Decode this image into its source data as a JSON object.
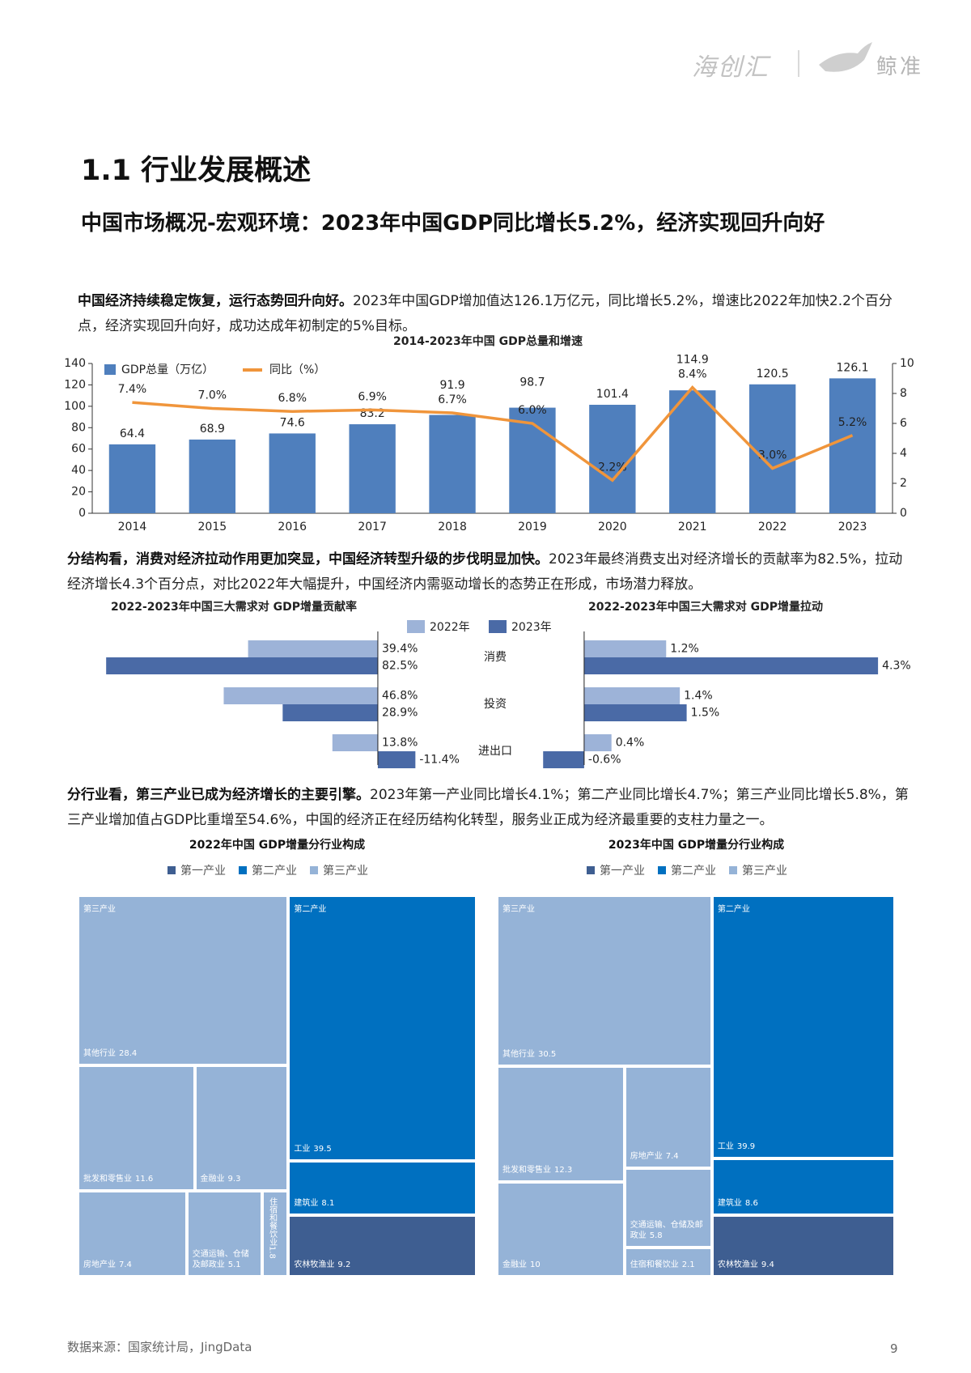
{
  "header": {
    "brand_left": "海创汇",
    "brand_right": "鲸准"
  },
  "section_title": "1.1 行业发展概述",
  "headline": "中国市场概况-宏观环境：2023年中国GDP同比增长5.2%，经济实现回升向好",
  "paragraphs": [
    {
      "lead": "中国经济持续稳定恢复，运行态势回升向好。",
      "text": "2023年中国GDP增加值达126.1万亿元，同比增长5.2%，增速比2022年加快2.2个百分点，经济实现回升向好，成功达成年初制定的5%目标。"
    },
    {
      "lead": "分结构看，消费对经济拉动作用更加突显，中国经济转型升级的步伐明显加快。",
      "text": "2023年最终消费支出对经济增长的贡献率为82.5%，拉动经济增长4.3个百分点，对比2022年大幅提升，中国经济内需驱动增长的态势正在形成，市场潜力释放。"
    },
    {
      "lead": "分行业看，第三产业已成为经济增长的主要引擎。",
      "text": "2023年第一产业同比增长4.1%；第二产业同比增长4.7%；第三产业同比增长5.8%，第三产业增加值占GDP比重增至54.6%，中国的经济正在经历结构化转型，服务业正成为经济最重要的支柱力量之一。"
    }
  ],
  "chart_data": [
    {
      "type": "combo",
      "title": "2014-2023年中国 GDP总量和增速",
      "categories": [
        "2014",
        "2015",
        "2016",
        "2017",
        "2018",
        "2019",
        "2020",
        "2021",
        "2022",
        "2023"
      ],
      "series": [
        {
          "name": "GDP总量（万亿）",
          "type": "bar",
          "color": "#4f7fbd",
          "values": [
            64.4,
            68.9,
            74.6,
            83.2,
            91.9,
            98.7,
            101.4,
            114.9,
            120.5,
            126.1
          ]
        },
        {
          "name": "同比（%）",
          "type": "line",
          "axis": "y2",
          "color": "#f0953b",
          "values": [
            7.4,
            7.0,
            6.8,
            6.9,
            6.7,
            6.0,
            2.2,
            8.4,
            3.0,
            5.2
          ],
          "value_labels": [
            "7.4%",
            "7.0%",
            "6.8%",
            "6.9%",
            "6.7%",
            "6.0%",
            "2.2%",
            "8.4%",
            "3.0%",
            "5.2%"
          ]
        }
      ],
      "ylim": [
        0,
        140
      ],
      "yticks": [
        0,
        20,
        40,
        60,
        80,
        100,
        120,
        140
      ],
      "y2lim": [
        0,
        10
      ],
      "y2ticks": [
        0,
        2,
        4,
        6,
        8,
        10
      ]
    },
    {
      "type": "mirror_bar",
      "categories": [
        "消费",
        "投资",
        "进出口"
      ],
      "series_names": [
        "2022年",
        "2023年"
      ],
      "colors": [
        "#9db3d8",
        "#4a6aa6"
      ],
      "panels": [
        {
          "title": "2022-2023年中国三大需求对 GDP增量贡献率",
          "xlim": [
            85,
            -15
          ],
          "values": [
            [
              39.4,
              46.8,
              13.8
            ],
            [
              82.5,
              28.9,
              -11.4
            ]
          ],
          "value_labels": [
            [
              "39.4%",
              "46.8%",
              "13.8%"
            ],
            [
              "82.5%",
              "28.9%",
              "-11.4%"
            ]
          ]
        },
        {
          "title": "2022-2023年中国三大需求对 GDP增量拉动",
          "xlim": [
            -0.65,
            4.5
          ],
          "values": [
            [
              1.2,
              1.4,
              0.4
            ],
            [
              4.3,
              1.5,
              -0.6
            ]
          ],
          "value_labels": [
            [
              "1.2%",
              "1.4%",
              "0.4%"
            ],
            [
              "4.3%",
              "1.5%",
              "-0.6%"
            ]
          ]
        }
      ]
    },
    {
      "type": "treemap",
      "title": "2022年中国 GDP增量分行业构成",
      "groups": [
        {
          "name": "第一产业",
          "color": "#3e5e91",
          "nodes": [
            {
              "name": "农林牧渔业",
              "value": 9.2
            }
          ]
        },
        {
          "name": "第二产业",
          "color": "#0070c0",
          "nodes": [
            {
              "name": "工业",
              "value": 39.5
            },
            {
              "name": "建筑业",
              "value": 8.1
            }
          ]
        },
        {
          "name": "第三产业",
          "color": "#95b3d7",
          "nodes": [
            {
              "name": "其他行业",
              "value": 28.4
            },
            {
              "name": "批发和零售业",
              "value": 11.6
            },
            {
              "name": "金融业",
              "value": 9.3
            },
            {
              "name": "房地产业",
              "value": 7.4
            },
            {
              "name": "交通运输、仓储及邮政业",
              "value": 5.1
            },
            {
              "name": "住宿和餐饮业",
              "value": 1.8
            }
          ]
        }
      ]
    },
    {
      "type": "treemap",
      "title": "2023年中国 GDP增量分行业构成",
      "groups": [
        {
          "name": "第一产业",
          "color": "#3e5e91",
          "nodes": [
            {
              "name": "农林牧渔业",
              "value": 9.4
            }
          ]
        },
        {
          "name": "第二产业",
          "color": "#0070c0",
          "nodes": [
            {
              "name": "工业",
              "value": 39.9
            },
            {
              "name": "建筑业",
              "value": 8.6
            }
          ]
        },
        {
          "name": "第三产业",
          "color": "#95b3d7",
          "nodes": [
            {
              "name": "其他行业",
              "value": 30.5
            },
            {
              "name": "批发和零售业",
              "value": 12.3
            },
            {
              "name": "金融业",
              "value": 10
            },
            {
              "name": "房地产业",
              "value": 7.4
            },
            {
              "name": "交通运输、仓储及邮政业",
              "value": 5.8
            },
            {
              "name": "住宿和餐饮业",
              "value": 2.1
            }
          ]
        }
      ]
    }
  ],
  "footer": {
    "source": "数据来源：国家统计局，JingData",
    "page": "9"
  }
}
